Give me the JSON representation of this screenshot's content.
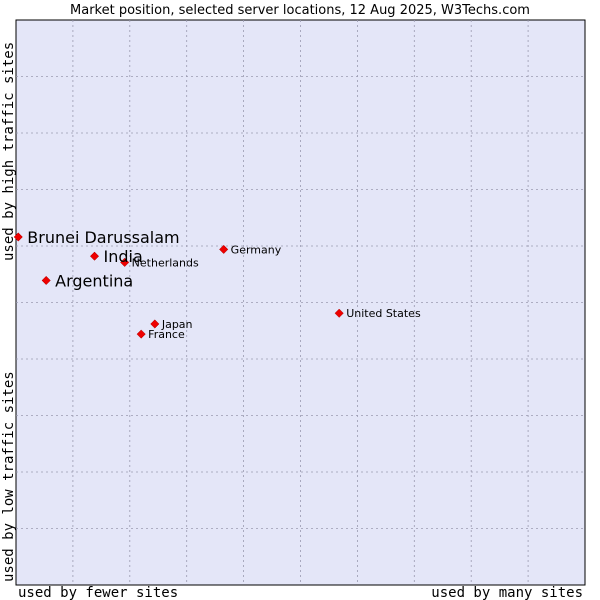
{
  "chart_data": {
    "type": "scatter",
    "title": "Market position, selected server locations, 12 Aug 2025, W3Techs.com",
    "xlabel_left": "used by fewer sites",
    "xlabel_right": "used by many sites",
    "ylabel_bottom": "used by low traffic sites",
    "ylabel_top": "used by high traffic sites",
    "xlim": [
      0,
      100
    ],
    "ylim": [
      0,
      100
    ],
    "grid": true,
    "colors": {
      "plot_bg": "#e4e6f8",
      "point": "#ee0000",
      "grid": "#9a9ab0"
    },
    "points": [
      {
        "label": "Brunei Darussalam",
        "x": 0.4,
        "y": 61.6,
        "size": "large"
      },
      {
        "label": "India",
        "x": 13.8,
        "y": 58.2,
        "size": "large"
      },
      {
        "label": "Argentina",
        "x": 5.3,
        "y": 53.9,
        "size": "large"
      },
      {
        "label": "Netherlands",
        "x": 19.1,
        "y": 57.1,
        "size": "small"
      },
      {
        "label": "Germany",
        "x": 36.5,
        "y": 59.4,
        "size": "small"
      },
      {
        "label": "United States",
        "x": 56.8,
        "y": 48.1,
        "size": "small"
      },
      {
        "label": "Japan",
        "x": 24.4,
        "y": 46.2,
        "size": "small"
      },
      {
        "label": "France",
        "x": 22.0,
        "y": 44.4,
        "size": "small"
      }
    ]
  }
}
